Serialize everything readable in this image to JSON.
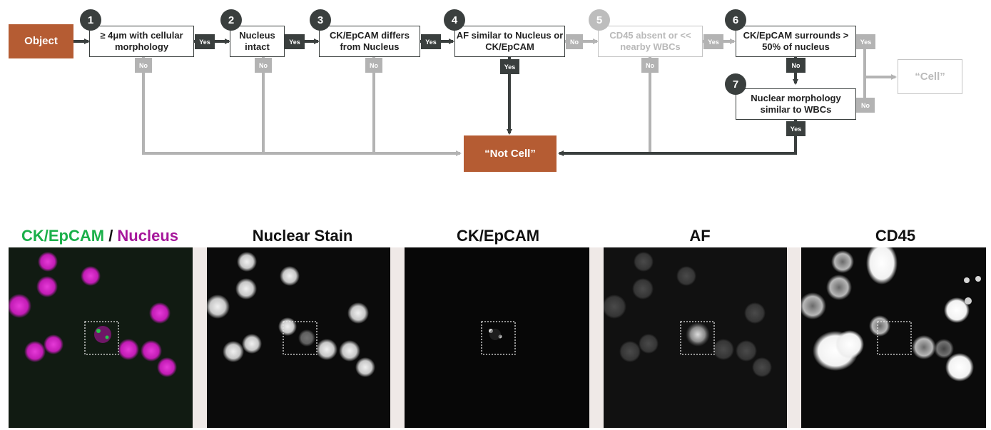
{
  "flowchart": {
    "start": "Object",
    "steps": [
      {
        "n": "1",
        "text": "≥ 4μm with cellular morphology"
      },
      {
        "n": "2",
        "text": "Nucleus intact"
      },
      {
        "n": "3",
        "text": "CK/EpCAM differs from Nucleus"
      },
      {
        "n": "4",
        "text": "AF similar to Nucleus or CK/EpCAM"
      },
      {
        "n": "5",
        "text": "CD45 absent or << nearby WBCs"
      },
      {
        "n": "6",
        "text": "CK/EpCAM surrounds > 50% of nucleus"
      },
      {
        "n": "7",
        "text": "Nuclear morphology similar to WBCs"
      }
    ],
    "yes_label": "Yes",
    "no_label": "No",
    "outcome_not_cell": "“Not Cell”",
    "outcome_cell": "“Cell”",
    "colors": {
      "dark": "#3a3f3e",
      "grey": "#b3b3b3",
      "orange": "#b55c33"
    }
  },
  "panels": {
    "merge_title_a": "CK/EpCAM",
    "merge_title_sep": " / ",
    "merge_title_b": "Nucleus",
    "titles": [
      "Nuclear Stain",
      "CK/EpCAM",
      "AF",
      "CD45"
    ],
    "colors": {
      "green": "#1bb04a",
      "magenta": "#a6179b"
    }
  }
}
